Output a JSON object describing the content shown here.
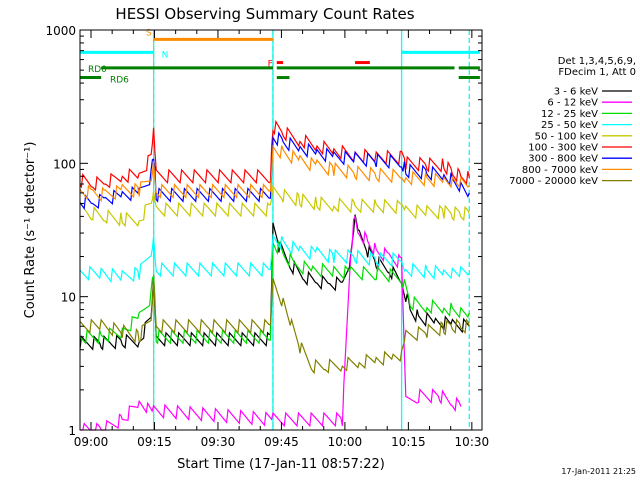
{
  "chart_data": {
    "type": "line",
    "title": "HESSI Observing Summary Count Rates",
    "xlabel": "Start Time (17-Jan-11 08:57:22)",
    "ylabel": "Count Rate (s⁻¹ detector⁻¹)",
    "footer_timestamp": "17-Jan-2011 21:25",
    "x_unit": "minutes after 08:57:22",
    "xlim": [
      0,
      95
    ],
    "ylim": [
      1,
      1000
    ],
    "y_scale": "log",
    "x_ticks": [
      {
        "x": 2.6,
        "label": "09:00"
      },
      {
        "x": 17.6,
        "label": "09:15"
      },
      {
        "x": 32.6,
        "label": "09:30"
      },
      {
        "x": 47.6,
        "label": "09:45"
      },
      {
        "x": 62.6,
        "label": "10:00"
      },
      {
        "x": 77.6,
        "label": "10:15"
      },
      {
        "x": 92.6,
        "label": "10:30"
      }
    ],
    "y_ticks": [
      {
        "y": 1,
        "label": "1"
      },
      {
        "y": 10,
        "label": "10"
      },
      {
        "y": 100,
        "label": "100"
      },
      {
        "y": 1000,
        "label": "1000"
      }
    ],
    "legend": {
      "header": [
        "Det 1,3,4,5,6,9,",
        "FDecim 1, Att 0"
      ],
      "placement": "right"
    },
    "vertical_lines": [
      {
        "x": 17.4,
        "color": "#ff8c00",
        "dashed": true
      },
      {
        "x": 45.6,
        "color": "#ff8c00",
        "dashed": true
      },
      {
        "x": 17.4,
        "color": "#00ffff",
        "dashed": false
      },
      {
        "x": 45.6,
        "color": "#00ffff",
        "dashed": false
      },
      {
        "x": 76.0,
        "color": "#00ffff",
        "dashed": false
      },
      {
        "x": 92.0,
        "color": "#00ffff",
        "dashed": true
      }
    ],
    "flag_bars": [
      {
        "label": "S",
        "color": "#ff8c00",
        "y": 850,
        "segments": [
          [
            17.4,
            45.6
          ]
        ]
      },
      {
        "label": "N",
        "color": "#00ffff",
        "y": 680,
        "segments": [
          [
            0,
            17.4
          ],
          [
            76.0,
            95
          ]
        ]
      },
      {
        "label": "F",
        "color": "#ff0000",
        "y": 570,
        "segments": [
          [
            46.5,
            48.0
          ],
          [
            65.0,
            68.5
          ]
        ]
      },
      {
        "label": "RD0",
        "color": "#008000",
        "y": 520,
        "segments": [
          [
            5,
            45.6
          ],
          [
            46.5,
            88.5
          ],
          [
            89.5,
            95
          ]
        ]
      },
      {
        "label": "RD6",
        "color": "#008000",
        "y": 440,
        "segments": [
          [
            0,
            5
          ],
          [
            46.5,
            49.5
          ],
          [
            89.5,
            95
          ]
        ]
      }
    ],
    "series": [
      {
        "name": "3 - 6 keV",
        "color": "#000000",
        "points": [
          [
            0,
            4.5
          ],
          [
            5,
            4.5
          ],
          [
            10,
            4.6
          ],
          [
            14,
            4.7
          ],
          [
            16.8,
            7
          ],
          [
            17.4,
            14
          ],
          [
            18,
            4.8
          ],
          [
            45,
            4.8
          ],
          [
            45.6,
            32
          ],
          [
            47,
            24
          ],
          [
            50,
            17
          ],
          [
            53,
            14
          ],
          [
            56,
            13
          ],
          [
            59,
            12.5
          ],
          [
            62,
            12.5
          ],
          [
            64,
            20
          ],
          [
            65,
            38
          ],
          [
            66,
            28
          ],
          [
            68,
            22
          ],
          [
            70,
            18
          ],
          [
            73,
            16
          ],
          [
            76,
            13
          ],
          [
            78,
            8
          ],
          [
            80,
            7
          ],
          [
            84,
            6.5
          ],
          [
            88,
            6.2
          ],
          [
            92,
            6
          ]
        ]
      },
      {
        "name": "6 - 12 keV",
        "color": "#ff00ff",
        "points": [
          [
            0,
            1
          ],
          [
            5,
            1
          ],
          [
            10,
            1.2
          ],
          [
            14,
            1.6
          ],
          [
            16,
            1.5
          ],
          [
            17.4,
            1.4
          ],
          [
            45.6,
            1.2
          ],
          [
            62,
            1.2
          ],
          [
            64,
            22
          ],
          [
            65,
            42
          ],
          [
            66,
            30
          ],
          [
            68,
            26
          ],
          [
            70,
            22
          ],
          [
            73,
            20
          ],
          [
            76,
            18
          ],
          [
            77,
            1.6
          ],
          [
            80,
            1.8
          ],
          [
            85,
            1.8
          ],
          [
            88,
            1.6
          ],
          [
            90,
            1.5
          ]
        ]
      },
      {
        "name": "12 - 25 keV",
        "color": "#00dd00",
        "points": [
          [
            0,
            5
          ],
          [
            5,
            5
          ],
          [
            10,
            5.5
          ],
          [
            14,
            7
          ],
          [
            16.8,
            10
          ],
          [
            17.4,
            16
          ],
          [
            18,
            5
          ],
          [
            45,
            5
          ],
          [
            45.6,
            26
          ],
          [
            48,
            21
          ],
          [
            51,
            17
          ],
          [
            55,
            16
          ],
          [
            60,
            15.5
          ],
          [
            64,
            15
          ],
          [
            70,
            15
          ],
          [
            76,
            14
          ],
          [
            78,
            9
          ],
          [
            82,
            8.5
          ],
          [
            86,
            8.2
          ],
          [
            88,
            8
          ],
          [
            90,
            7.8
          ],
          [
            92,
            7.6
          ]
        ]
      },
      {
        "name": "25 - 50 keV",
        "color": "#00ffff",
        "points": [
          [
            0,
            15
          ],
          [
            5,
            15
          ],
          [
            10,
            14
          ],
          [
            14,
            15
          ],
          [
            16.8,
            22
          ],
          [
            17.4,
            30
          ],
          [
            18,
            16
          ],
          [
            45,
            16
          ],
          [
            45.6,
            28
          ],
          [
            48,
            25
          ],
          [
            52,
            22
          ],
          [
            56,
            21
          ],
          [
            60,
            20
          ],
          [
            65,
            20
          ],
          [
            70,
            19
          ],
          [
            76,
            19
          ],
          [
            77,
            16
          ],
          [
            82,
            15.5
          ],
          [
            86,
            15
          ],
          [
            88,
            15
          ],
          [
            90,
            15
          ],
          [
            92,
            15
          ]
        ]
      },
      {
        "name": "50 - 100 keV",
        "color": "#c8c800",
        "points": [
          [
            0,
            46
          ],
          [
            3,
            42
          ],
          [
            6,
            40
          ],
          [
            10,
            38
          ],
          [
            14,
            38
          ],
          [
            16.8,
            50
          ],
          [
            17.4,
            60
          ],
          [
            18,
            45
          ],
          [
            45,
            45
          ],
          [
            45.6,
            60
          ],
          [
            48,
            57
          ],
          [
            52,
            53
          ],
          [
            56,
            50
          ],
          [
            60,
            49
          ],
          [
            65,
            48
          ],
          [
            70,
            48
          ],
          [
            76,
            47
          ],
          [
            77,
            44
          ],
          [
            82,
            43
          ],
          [
            86,
            43
          ],
          [
            88,
            42
          ],
          [
            90,
            42
          ],
          [
            92,
            42
          ]
        ]
      },
      {
        "name": "100 - 300 keV",
        "color": "#ff0000",
        "points": [
          [
            0,
            75
          ],
          [
            3,
            70
          ],
          [
            6,
            72
          ],
          [
            10,
            80
          ],
          [
            14,
            82
          ],
          [
            16.8,
            110
          ],
          [
            17.4,
            170
          ],
          [
            18,
            80
          ],
          [
            45,
            80
          ],
          [
            45.6,
            190
          ],
          [
            48,
            170
          ],
          [
            52,
            150
          ],
          [
            56,
            135
          ],
          [
            60,
            125
          ],
          [
            65,
            115
          ],
          [
            70,
            112
          ],
          [
            76,
            110
          ],
          [
            77,
            100
          ],
          [
            82,
            98
          ],
          [
            86,
            97
          ],
          [
            88,
            85
          ],
          [
            90,
            80
          ],
          [
            92,
            78
          ]
        ]
      },
      {
        "name": "300 - 800 keV",
        "color": "#0000ff",
        "points": [
          [
            0,
            52
          ],
          [
            3,
            50
          ],
          [
            6,
            54
          ],
          [
            10,
            58
          ],
          [
            14,
            60
          ],
          [
            16.8,
            80
          ],
          [
            17.4,
            120
          ],
          [
            18,
            58
          ],
          [
            45,
            58
          ],
          [
            45.6,
            160
          ],
          [
            48,
            145
          ],
          [
            52,
            130
          ],
          [
            56,
            120
          ],
          [
            60,
            112
          ],
          [
            65,
            108
          ],
          [
            70,
            105
          ],
          [
            76,
            102
          ],
          [
            77,
            88
          ],
          [
            82,
            85
          ],
          [
            86,
            82
          ],
          [
            88,
            75
          ],
          [
            90,
            68
          ],
          [
            92,
            60
          ]
        ]
      },
      {
        "name": "800 - 7000 keV",
        "color": "#ff8c00",
        "points": [
          [
            0,
            62
          ],
          [
            3,
            60
          ],
          [
            6,
            58
          ],
          [
            10,
            62
          ],
          [
            14,
            63
          ],
          [
            16.8,
            80
          ],
          [
            17.4,
            110
          ],
          [
            18,
            62
          ],
          [
            45,
            62
          ],
          [
            45.6,
            130
          ],
          [
            48,
            120
          ],
          [
            52,
            105
          ],
          [
            56,
            95
          ],
          [
            60,
            90
          ],
          [
            65,
            85
          ],
          [
            70,
            82
          ],
          [
            76,
            80
          ],
          [
            77,
            78
          ],
          [
            82,
            76
          ],
          [
            86,
            74
          ],
          [
            88,
            72
          ],
          [
            90,
            70
          ],
          [
            92,
            68
          ]
        ]
      },
      {
        "name": "7000 - 20000 keV",
        "color": "#808000",
        "points": [
          [
            0,
            6
          ],
          [
            5,
            6
          ],
          [
            10,
            5.5
          ],
          [
            14,
            5
          ],
          [
            16.8,
            7
          ],
          [
            17.4,
            14
          ],
          [
            18,
            6
          ],
          [
            45,
            6
          ],
          [
            45.6,
            13
          ],
          [
            48,
            9
          ],
          [
            50,
            6
          ],
          [
            52,
            4.2
          ],
          [
            55,
            3
          ],
          [
            58,
            3
          ],
          [
            62,
            3.1
          ],
          [
            66,
            3.2
          ],
          [
            70,
            3.4
          ],
          [
            74,
            3.5
          ],
          [
            76,
            3.6
          ],
          [
            77,
            5
          ],
          [
            82,
            5.5
          ],
          [
            86,
            5.8
          ],
          [
            88,
            6
          ],
          [
            90,
            6
          ],
          [
            92,
            6
          ]
        ]
      }
    ]
  }
}
